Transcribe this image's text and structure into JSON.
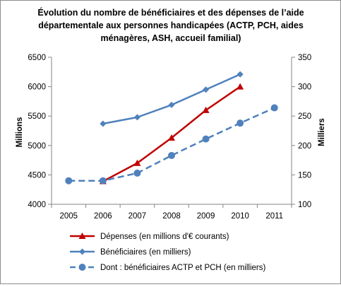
{
  "chart_data": {
    "type": "line",
    "title_lines": [
      "Évolution du nombre de bénéficiaires et des dépenses de l’aide",
      "départementale aux personnes handicapées (ACTP, PCH, aides",
      "ménagères, ASH, accueil familial)"
    ],
    "ylabel_left": "Millions",
    "ylabel_right": "Milliers",
    "categories": [
      "2005",
      "2006",
      "2007",
      "2008",
      "2009",
      "2010",
      "2011"
    ],
    "ylim_left": [
      4000,
      6500
    ],
    "yticks_left": [
      "4000",
      "4500",
      "5000",
      "5500",
      "6000",
      "6500"
    ],
    "ylim_right": [
      100,
      350
    ],
    "yticks_right": [
      "100",
      "150",
      "200",
      "250",
      "300",
      "350"
    ],
    "grid": false,
    "legend_position": "bottom",
    "series": [
      {
        "name": "Dépenses (en millions d'€ courants)",
        "axis": "left",
        "color": "#c00000",
        "marker": "triangle",
        "dash": false,
        "values": [
          null,
          4390,
          4700,
          5130,
          5600,
          6000,
          null
        ]
      },
      {
        "name": "Bénéficiaires (en milliers)",
        "axis": "right",
        "color": "#4f81bd",
        "marker": "diamond",
        "dash": false,
        "values": [
          null,
          237,
          248,
          269,
          295,
          321,
          null
        ]
      },
      {
        "name": "Dont : bénéficiaires ACTP et PCH (en milliers)",
        "axis": "right",
        "color": "#4f81bd",
        "marker": "circle",
        "dash": true,
        "values": [
          140,
          140,
          153,
          183,
          211,
          238,
          264
        ]
      }
    ]
  }
}
